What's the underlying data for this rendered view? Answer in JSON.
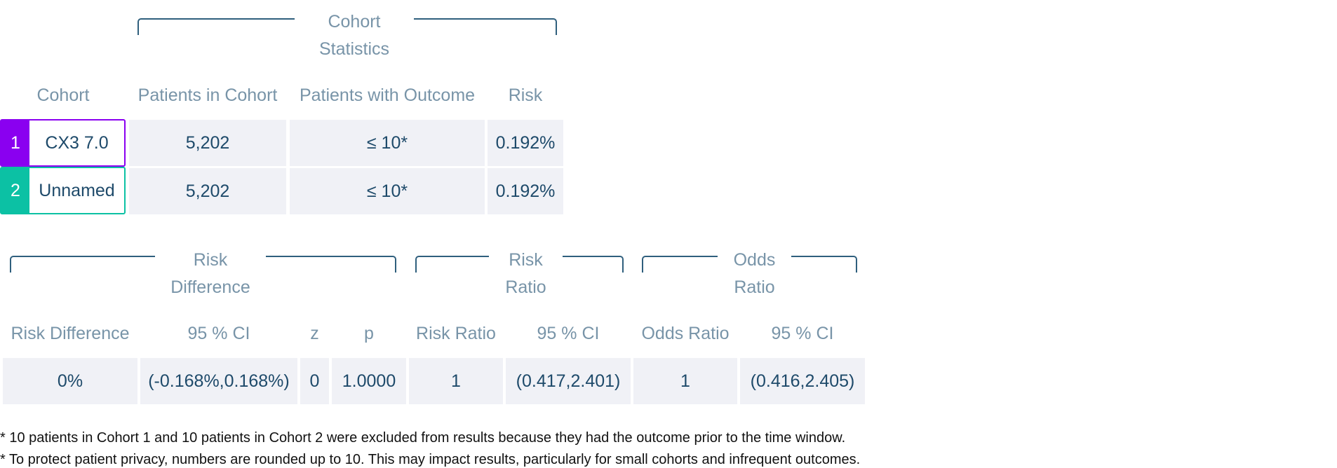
{
  "cohort_statistics": {
    "group_title": "Cohort Statistics",
    "headers": [
      "Cohort",
      "Patients in Cohort",
      "Patients with Outcome",
      "Risk"
    ],
    "rows": [
      {
        "num": "1",
        "name": "CX3 7.0",
        "patients": "5,202",
        "outcome": "≤ 10*",
        "risk": "0.192%"
      },
      {
        "num": "2",
        "name": "Unnamed",
        "patients": "5,202",
        "outcome": "≤ 10*",
        "risk": "0.192%"
      }
    ],
    "cohort_colors": [
      "#8a00f0",
      "#0cc1a4"
    ]
  },
  "comparison": {
    "groups": {
      "risk_difference": "Risk Difference",
      "risk_ratio": "Risk Ratio",
      "odds_ratio": "Odds Ratio"
    },
    "headers": [
      "Risk Difference",
      "95 % CI",
      "z",
      "p",
      "Risk Ratio",
      "95 % CI",
      "Odds Ratio",
      "95 % CI"
    ],
    "values": [
      "0%",
      "(-0.168%,0.168%)",
      "0",
      "1.0000",
      "1",
      "(0.417,2.401)",
      "1",
      "(0.416,2.405)"
    ]
  },
  "notes": [
    "* 10 patients in Cohort 1 and 10 patients in Cohort 2 were excluded from results because they had the outcome prior to the time window.",
    "* To protect patient privacy, numbers are rounded up to 10. This may impact results, particularly for small cohorts and infrequent outcomes."
  ]
}
